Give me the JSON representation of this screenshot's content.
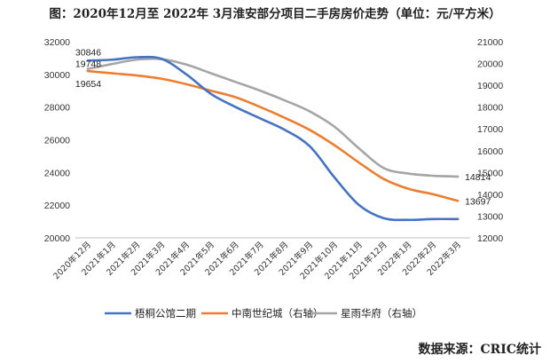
{
  "title": "图：2020年12月至 2022年 3月淮安部分项目二手房房价走势（单位：元/平方米）",
  "source": "数据来源：CRIC统计",
  "chart_data": {
    "type": "line",
    "title": "图：2020年12月至 2022年 3月淮安部分项目二手房房价走势（单位：元/平方米）",
    "categories": [
      "2020年12月",
      "2021年1月",
      "2021年2月",
      "2021年3月",
      "2021年4月",
      "2021年5月",
      "2021年6月",
      "2021年7月",
      "2021年8月",
      "2021年9月",
      "2021年10月",
      "2021年11月",
      "2021年12月",
      "2022年1月",
      "2022年2月",
      "2022年3月"
    ],
    "left_axis": {
      "ylim": [
        20000,
        32000
      ],
      "ticks": [
        20000,
        22000,
        24000,
        26000,
        28000,
        30000,
        32000
      ]
    },
    "right_axis": {
      "ylim": [
        12000,
        21000
      ],
      "ticks": [
        12000,
        13000,
        14000,
        15000,
        16000,
        17000,
        18000,
        19000,
        20000,
        21000
      ]
    },
    "series": [
      {
        "name": "梧桐公馆二期",
        "axis": "left",
        "color": "#4472C4",
        "values": [
          30846,
          30900,
          31050,
          30950,
          30000,
          28800,
          28000,
          27300,
          26600,
          25600,
          23700,
          22000,
          21200,
          21100,
          21150,
          21150
        ]
      },
      {
        "name": "中南世纪城（右轴）",
        "axis": "right",
        "color": "#ED7D31",
        "values": [
          19654,
          19550,
          19450,
          19300,
          19050,
          18750,
          18450,
          18000,
          17500,
          16950,
          16250,
          15450,
          14700,
          14250,
          14000,
          13697
        ]
      },
      {
        "name": "星雨华府（右轴）",
        "axis": "right",
        "color": "#A5A5A5",
        "values": [
          19748,
          19980,
          20180,
          20200,
          19950,
          19550,
          19150,
          18750,
          18300,
          17800,
          17100,
          16100,
          15200,
          14950,
          14850,
          14814
        ]
      }
    ],
    "data_labels": [
      {
        "series": 0,
        "index": 0,
        "text": "30846"
      },
      {
        "series": 2,
        "index": 0,
        "text": "19748"
      },
      {
        "series": 1,
        "index": 0,
        "text": "19654"
      },
      {
        "series": 2,
        "index": 15,
        "text": "14814"
      },
      {
        "series": 1,
        "index": 15,
        "text": "13697"
      }
    ],
    "legend": "bottom",
    "grid": false
  }
}
